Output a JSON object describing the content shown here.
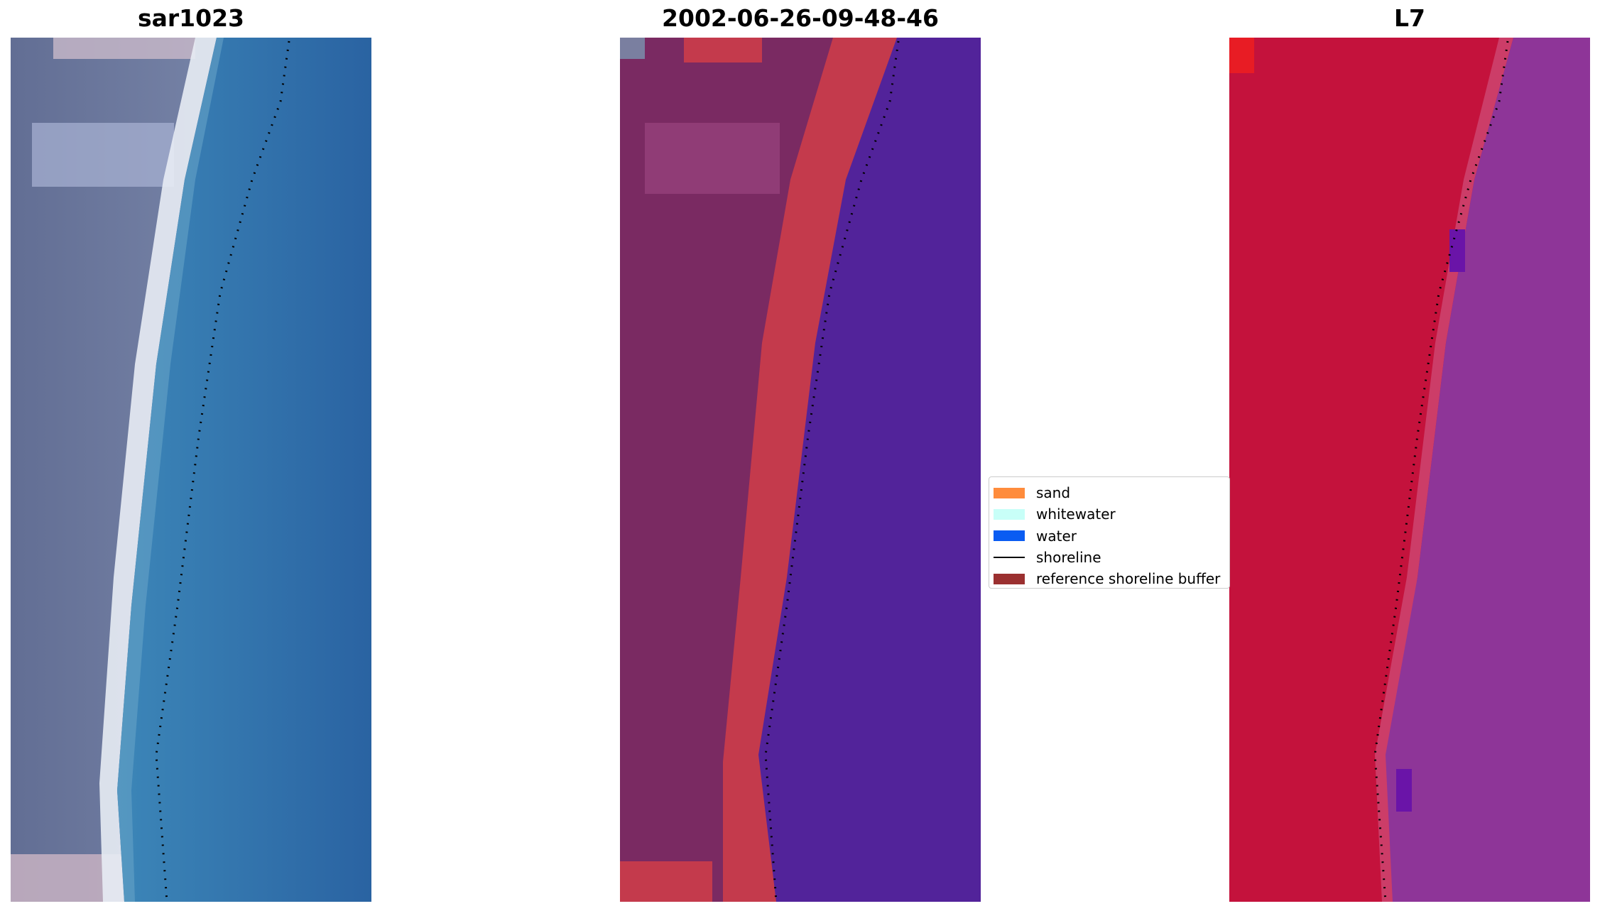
{
  "panels": [
    {
      "title": "sar1023"
    },
    {
      "title": "2002-06-26-09-48-46"
    },
    {
      "title": "L7"
    }
  ],
  "legend": {
    "items": [
      {
        "label": "sand",
        "type": "patch",
        "color": "#ff8c3c"
      },
      {
        "label": "whitewater",
        "type": "patch",
        "color": "#c8fff8"
      },
      {
        "label": "water",
        "type": "patch",
        "color": "#0a5cf2"
      },
      {
        "label": "shoreline",
        "type": "line",
        "color": "#000000"
      },
      {
        "label": "reference shoreline buffer",
        "type": "patch",
        "color": "#9b3030"
      }
    ]
  },
  "colors": {
    "rgb_land": "#6b7a9c",
    "rgb_beach": "#e6eaf2",
    "rgb_water": "#2f79b3",
    "class_land": "#7c2a63",
    "class_buffer": "#c43a4c",
    "class_water": "#52239a",
    "ndwi_land": "#c4123c",
    "ndwi_water": "#8e3598",
    "shoreline": "#000000"
  }
}
